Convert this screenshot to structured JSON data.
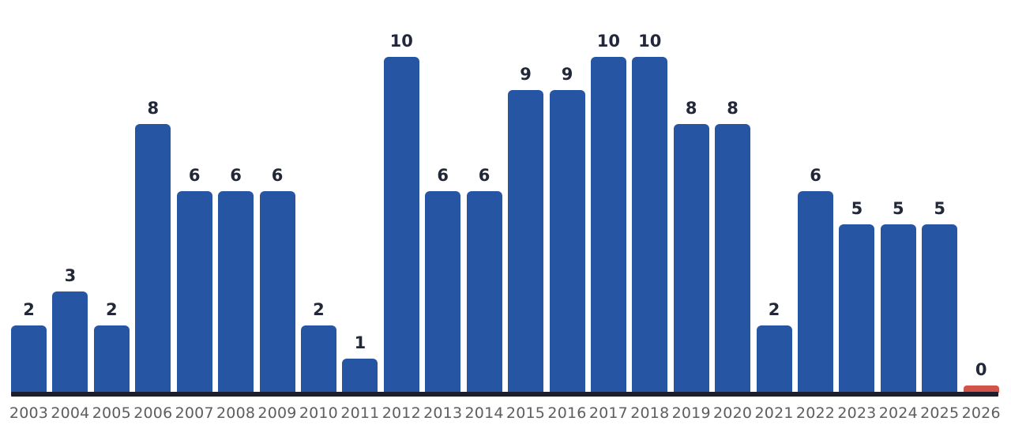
{
  "page": {
    "background_color": "#ffffff"
  },
  "chart_data": {
    "type": "bar",
    "title": "",
    "xlabel": "",
    "ylabel": "",
    "categories": [
      "2003",
      "2004",
      "2005",
      "2006",
      "2007",
      "2008",
      "2009",
      "2010",
      "2011",
      "2012",
      "2013",
      "2014",
      "2015",
      "2016",
      "2017",
      "2018",
      "2019",
      "2020",
      "2021",
      "2022",
      "2023",
      "2024",
      "2025",
      "2026"
    ],
    "values": [
      2,
      3,
      2,
      8,
      6,
      6,
      6,
      2,
      1,
      10,
      6,
      6,
      9,
      9,
      10,
      10,
      8,
      8,
      2,
      6,
      5,
      5,
      5,
      0
    ],
    "ylim": [
      0,
      10
    ],
    "grid": false,
    "legend": "none",
    "value_labels_position": "above-bars",
    "x_axis_line_shown": true,
    "y_axis_shown": false,
    "bar_color": "#2655a4",
    "zero_bar_color": "#d05548",
    "axis_line_color": "#1b1f2d",
    "value_label_color": "#232838",
    "tick_label_color": "#5e5e5e"
  }
}
